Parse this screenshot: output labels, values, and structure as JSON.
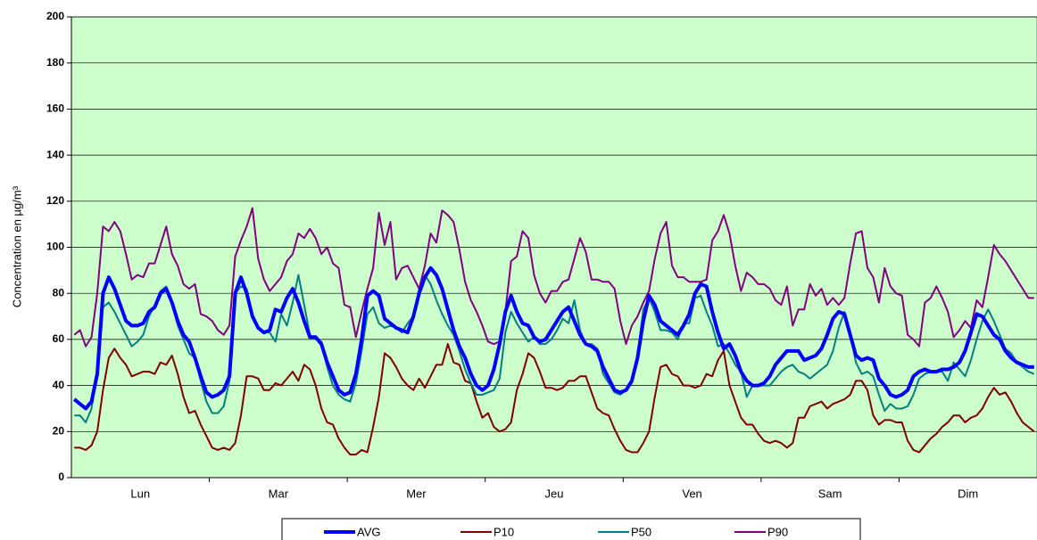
{
  "chart_data": {
    "type": "line",
    "y_label": "Concentration en µg/m³",
    "ylim": [
      0,
      200
    ],
    "yticks": [
      0,
      20,
      40,
      60,
      80,
      100,
      120,
      140,
      160,
      180,
      200
    ],
    "grid": true,
    "categories": [
      null,
      null,
      null,
      null,
      null,
      null,
      null,
      null,
      null,
      null,
      null,
      null,
      "Lun",
      null,
      null,
      null,
      null,
      null,
      null,
      null,
      null,
      null,
      null,
      null,
      null,
      null,
      null,
      null,
      null,
      null,
      null,
      null,
      null,
      null,
      null,
      null,
      "Mar",
      null,
      null,
      null,
      null,
      null,
      null,
      null,
      null,
      null,
      null,
      null,
      null,
      null,
      null,
      null,
      null,
      null,
      null,
      null,
      null,
      null,
      null,
      null,
      "Mer",
      null,
      null,
      null,
      null,
      null,
      null,
      null,
      null,
      null,
      null,
      null,
      null,
      null,
      null,
      null,
      null,
      null,
      null,
      null,
      null,
      null,
      null,
      null,
      "Jeu",
      null,
      null,
      null,
      null,
      null,
      null,
      null,
      null,
      null,
      null,
      null,
      null,
      null,
      null,
      null,
      null,
      null,
      null,
      null,
      null,
      null,
      null,
      null,
      "Ven",
      null,
      null,
      null,
      null,
      null,
      null,
      null,
      null,
      null,
      null,
      null,
      null,
      null,
      null,
      null,
      null,
      null,
      null,
      null,
      null,
      null,
      null,
      null,
      "Sam",
      null,
      null,
      null,
      null,
      null,
      null,
      null,
      null,
      null,
      null,
      null,
      null,
      null,
      null,
      null,
      null,
      null,
      null,
      null,
      null,
      null,
      null,
      null,
      "Dim",
      null,
      null,
      null,
      null,
      null,
      null,
      null,
      null,
      null,
      null,
      null
    ],
    "series": [
      {
        "name": "AVG",
        "color": "#0000ff",
        "values": [
          34,
          32,
          30,
          33,
          45,
          80,
          87,
          82,
          75,
          68,
          66,
          66,
          67,
          72,
          74,
          80,
          82,
          76,
          68,
          62,
          59,
          52,
          44,
          37,
          35,
          36,
          38,
          44,
          80,
          87,
          80,
          70,
          65,
          63,
          64,
          73,
          72,
          78,
          82,
          76,
          68,
          61,
          61,
          58,
          50,
          44,
          38,
          36,
          37,
          45,
          60,
          79,
          81,
          79,
          69,
          67,
          65,
          64,
          63,
          70,
          80,
          87,
          91,
          88,
          82,
          73,
          64,
          57,
          52,
          45,
          40,
          38,
          40,
          47,
          58,
          72,
          79,
          72,
          67,
          66,
          61,
          59,
          60,
          64,
          68,
          72,
          74,
          68,
          62,
          58,
          57,
          55,
          48,
          43,
          38,
          37,
          38,
          42,
          52,
          68,
          79,
          75,
          68,
          66,
          64,
          62,
          66,
          71,
          80,
          84,
          83,
          72,
          63,
          56,
          58,
          53,
          46,
          42,
          40,
          40,
          41,
          44,
          49,
          52,
          55,
          55,
          55,
          51,
          52,
          53,
          56,
          62,
          69,
          72,
          71,
          62,
          53,
          51,
          52,
          51,
          43,
          40,
          36,
          35,
          36,
          38,
          44,
          46,
          47,
          46,
          46,
          47,
          47,
          48,
          50,
          55,
          63,
          71,
          70,
          66,
          62,
          60,
          55,
          52,
          50,
          49,
          48,
          48
        ]
      },
      {
        "name": "P10",
        "color": "#800000",
        "values": [
          13,
          13,
          12,
          14,
          20,
          38,
          52,
          56,
          52,
          49,
          44,
          45,
          46,
          46,
          45,
          50,
          49,
          53,
          45,
          35,
          28,
          29,
          23,
          18,
          13,
          12,
          13,
          12,
          15,
          27,
          44,
          44,
          43,
          38,
          38,
          41,
          40,
          43,
          46,
          42,
          49,
          47,
          40,
          30,
          24,
          23,
          17,
          13,
          10,
          10,
          12,
          11,
          22,
          35,
          54,
          52,
          48,
          43,
          40,
          38,
          43,
          39,
          44,
          49,
          49,
          58,
          50,
          49,
          42,
          41,
          33,
          26,
          28,
          22,
          20,
          21,
          24,
          38,
          45,
          54,
          52,
          46,
          39,
          39,
          38,
          39,
          42,
          42,
          44,
          44,
          37,
          30,
          28,
          27,
          21,
          16,
          12,
          11,
          11,
          15,
          20,
          35,
          48,
          49,
          45,
          44,
          40,
          40,
          39,
          40,
          45,
          44,
          51,
          55,
          40,
          33,
          26,
          23,
          23,
          19,
          16,
          15,
          16,
          15,
          13,
          15,
          26,
          26,
          31,
          32,
          33,
          30,
          32,
          33,
          34,
          36,
          42,
          42,
          38,
          27,
          23,
          25,
          25,
          24,
          24,
          16,
          12,
          11,
          14,
          17,
          19,
          22,
          24,
          27,
          27,
          24,
          26,
          27,
          30,
          35,
          39,
          36,
          37,
          33,
          28,
          24,
          22,
          20
        ]
      },
      {
        "name": "P50",
        "color": "#008080",
        "values": [
          27,
          27,
          24,
          30,
          45,
          74,
          76,
          72,
          67,
          62,
          57,
          59,
          62,
          70,
          75,
          81,
          83,
          76,
          66,
          60,
          54,
          52,
          42,
          33,
          28,
          28,
          31,
          42,
          80,
          83,
          82,
          70,
          65,
          63,
          63,
          59,
          71,
          66,
          76,
          88,
          75,
          62,
          60,
          59,
          48,
          40,
          36,
          34,
          33,
          41,
          55,
          71,
          74,
          67,
          65,
          66,
          65,
          63,
          67,
          70,
          82,
          88,
          84,
          77,
          71,
          66,
          62,
          55,
          47,
          41,
          36,
          36,
          37,
          38,
          43,
          63,
          72,
          67,
          63,
          59,
          61,
          58,
          58,
          60,
          64,
          69,
          67,
          77,
          64,
          58,
          58,
          56,
          45,
          41,
          37,
          36,
          38,
          41,
          53,
          73,
          78,
          72,
          64,
          64,
          63,
          60,
          67,
          67,
          78,
          79,
          72,
          66,
          57,
          58,
          54,
          49,
          46,
          35,
          40,
          40,
          40,
          40,
          43,
          46,
          48,
          49,
          46,
          45,
          43,
          45,
          47,
          49,
          55,
          65,
          72,
          62,
          50,
          45,
          46,
          44,
          36,
          29,
          32,
          30,
          30,
          31,
          36,
          43,
          45,
          46,
          46,
          46,
          42,
          50,
          47,
          44,
          51,
          60,
          68,
          73,
          68,
          62,
          56,
          54,
          50,
          48,
          46,
          45
        ]
      },
      {
        "name": "P90",
        "color": "#800080",
        "values": [
          62,
          64,
          57,
          61,
          80,
          109,
          107,
          111,
          107,
          97,
          86,
          88,
          87,
          93,
          93,
          101,
          109,
          97,
          92,
          84,
          82,
          84,
          71,
          70,
          68,
          64,
          62,
          66,
          96,
          103,
          109,
          117,
          95,
          86,
          81,
          84,
          87,
          94,
          97,
          106,
          104,
          108,
          104,
          97,
          100,
          93,
          91,
          75,
          74,
          61,
          72,
          82,
          91,
          115,
          101,
          111,
          86,
          91,
          92,
          87,
          82,
          92,
          106,
          102,
          116,
          114,
          111,
          99,
          85,
          77,
          72,
          66,
          59,
          58,
          59,
          72,
          94,
          96,
          107,
          104,
          88,
          80,
          76,
          81,
          81,
          85,
          86,
          95,
          104,
          98,
          86,
          86,
          85,
          85,
          82,
          68,
          58,
          66,
          70,
          76,
          81,
          95,
          106,
          111,
          92,
          87,
          87,
          85,
          85,
          85,
          86,
          103,
          107,
          114,
          106,
          92,
          81,
          89,
          87,
          84,
          84,
          82,
          77,
          75,
          83,
          66,
          73,
          73,
          84,
          79,
          82,
          75,
          78,
          75,
          78,
          93,
          106,
          107,
          91,
          87,
          76,
          91,
          83,
          80,
          79,
          62,
          60,
          57,
          76,
          78,
          83,
          78,
          72,
          61,
          64,
          68,
          65,
          77,
          74,
          87,
          101,
          97,
          94,
          90,
          86,
          82,
          78,
          78
        ]
      }
    ]
  }
}
